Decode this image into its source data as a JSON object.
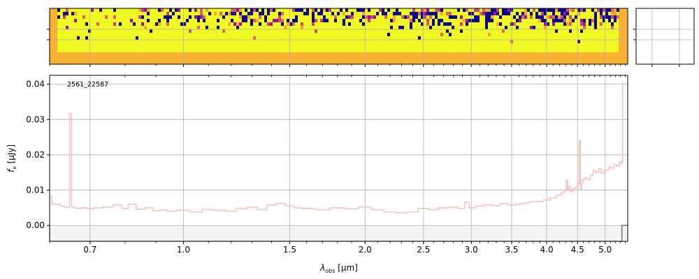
{
  "chart_data": [
    {
      "panel": "2d-spectrum",
      "type": "heatmap",
      "colormap": "plasma",
      "colors": {
        "background": "#f9b233",
        "high": "#f0f921",
        "low": "#0d0887"
      },
      "note_rows": 7,
      "grid": true
    },
    {
      "panel": "side-panel",
      "type": "line",
      "grid": true,
      "values": []
    },
    {
      "panel": "1d-spectrum",
      "type": "line",
      "xscale": "log",
      "xlim": [
        0.6,
        5.45
      ],
      "ylim": [
        -0.0045,
        0.0425
      ],
      "xlabel": "λobs [μm]",
      "xlabel_main": "λ",
      "xlabel_sub": "obs",
      "xlabel_unit": " [μm]",
      "ylabel": "fν [μJy]",
      "ylabel_main": "f",
      "ylabel_sub": "ν",
      "ylabel_unit": " [μJy]",
      "xticks": [
        0.7,
        1.0,
        1.5,
        2.0,
        2.5,
        3.0,
        3.5,
        4.0,
        4.5,
        5.0
      ],
      "xtick_labels": [
        "0.7",
        "1.0",
        "1.5",
        "2.0",
        "2.5",
        "3.0",
        "3.5",
        "4.0",
        "4.5",
        "5.0"
      ],
      "yticks": [
        0.0,
        0.01,
        0.02,
        0.03,
        0.04
      ],
      "ytick_labels": [
        "0.00",
        "0.01",
        "0.02",
        "0.03",
        "0.04"
      ],
      "grid": true,
      "legend": {
        "position": "top-left",
        "label": "2561_22587"
      },
      "colors": {
        "spectrum": "#f9c3c1",
        "mask": "#808080"
      },
      "series": [
        {
          "name": "2561_22587",
          "x": [
            0.6,
            0.61,
            0.62,
            0.63,
            0.64,
            0.645,
            0.65,
            0.655,
            0.66,
            0.67,
            0.68,
            0.7,
            0.72,
            0.75,
            0.78,
            0.8,
            0.82,
            0.85,
            0.88,
            0.9,
            0.93,
            0.95,
            1.0,
            1.05,
            1.1,
            1.15,
            1.2,
            1.25,
            1.3,
            1.35,
            1.4,
            1.45,
            1.5,
            1.55,
            1.6,
            1.7,
            1.8,
            1.9,
            2.0,
            2.1,
            2.2,
            2.3,
            2.4,
            2.5,
            2.6,
            2.7,
            2.8,
            2.9,
            2.95,
            3.0,
            3.1,
            3.2,
            3.3,
            3.4,
            3.5,
            3.6,
            3.7,
            3.8,
            3.9,
            4.0,
            4.1,
            4.2,
            4.25,
            4.3,
            4.32,
            4.34,
            4.36,
            4.4,
            4.45,
            4.5,
            4.52,
            4.54,
            4.56,
            4.58,
            4.6,
            4.65,
            4.7,
            4.75,
            4.8,
            4.85,
            4.9,
            4.95,
            5.0,
            5.05,
            5.1,
            5.15,
            5.2,
            5.25,
            5.3,
            5.33,
            5.34,
            5.35
          ],
          "y": [
            0.0082,
            0.006,
            0.006,
            0.0055,
            0.0052,
            0.0051,
            0.0316,
            0.0052,
            0.005,
            0.0048,
            0.005,
            0.0048,
            0.005,
            0.0052,
            0.0058,
            0.0048,
            0.006,
            0.0046,
            0.005,
            0.0042,
            0.0044,
            0.004,
            0.0043,
            0.0038,
            0.0045,
            0.0043,
            0.004,
            0.0048,
            0.0052,
            0.0045,
            0.0058,
            0.0062,
            0.0055,
            0.005,
            0.0048,
            0.0045,
            0.005,
            0.0047,
            0.0052,
            0.0045,
            0.0038,
            0.0036,
            0.0038,
            0.0048,
            0.0045,
            0.005,
            0.0052,
            0.0048,
            0.0066,
            0.005,
            0.0055,
            0.0058,
            0.0056,
            0.0062,
            0.0058,
            0.006,
            0.0063,
            0.0068,
            0.0068,
            0.0072,
            0.0078,
            0.0085,
            0.0092,
            0.0098,
            0.0128,
            0.0102,
            0.011,
            0.0096,
            0.0105,
            0.0108,
            0.0118,
            0.024,
            0.0102,
            0.012,
            0.013,
            0.0135,
            0.013,
            0.0142,
            0.0155,
            0.015,
            0.016,
            0.0148,
            0.0155,
            0.0158,
            0.0165,
            0.0162,
            0.0172,
            0.0168,
            0.018,
            0.0175,
            0.0182,
            0.0405
          ]
        },
        {
          "name": "mask",
          "x": [
            0.59,
            0.6,
            0.6,
            5.33,
            5.33,
            5.45
          ],
          "y": [
            0.0,
            0.0,
            -0.0045,
            -0.0045,
            0.0,
            0.0
          ]
        }
      ]
    }
  ]
}
